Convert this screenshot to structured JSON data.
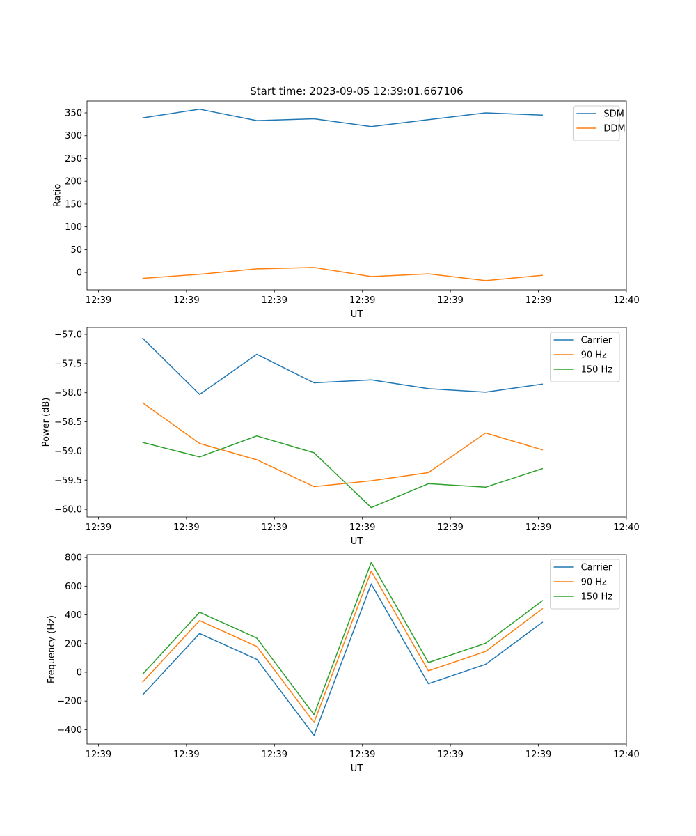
{
  "figure_title": "Start time: 2023-09-05 12:39:01.667106",
  "chart_data": [
    {
      "type": "line",
      "ylabel": "Ratio",
      "xlabel": "UT",
      "x": [
        0.5,
        1.15,
        1.8,
        2.45,
        3.1,
        3.75,
        4.4,
        5.05
      ],
      "xlim": [
        -0.13,
        6.0
      ],
      "ylim": [
        -38,
        376
      ],
      "xticks": [
        0,
        1,
        2,
        3,
        4,
        5,
        6
      ],
      "xtick_labels": [
        "12:39",
        "12:39",
        "12:39",
        "12:39",
        "12:39",
        "12:39",
        "12:40"
      ],
      "yticks": [
        0,
        50,
        100,
        150,
        200,
        250,
        300,
        350
      ],
      "ytick_labels": [
        "0",
        "50",
        "100",
        "150",
        "200",
        "250",
        "300",
        "350"
      ],
      "legend_position": "top-right",
      "series": [
        {
          "name": "SDM",
          "color": "#1f77b4",
          "values": [
            339,
            358,
            333,
            337,
            320,
            335,
            350,
            345
          ]
        },
        {
          "name": "DDM",
          "color": "#ff7f0e",
          "values": [
            -13,
            -4,
            8,
            11,
            -9,
            -3,
            -18,
            -6
          ]
        }
      ]
    },
    {
      "type": "line",
      "ylabel": "Power (dB)",
      "xlabel": "UT",
      "x": [
        0.5,
        1.15,
        1.8,
        2.45,
        3.1,
        3.75,
        4.4,
        5.05
      ],
      "xlim": [
        -0.13,
        6.0
      ],
      "ylim": [
        -60.13,
        -56.88
      ],
      "xticks": [
        0,
        1,
        2,
        3,
        4,
        5,
        6
      ],
      "xtick_labels": [
        "12:39",
        "12:39",
        "12:39",
        "12:39",
        "12:39",
        "12:39",
        "12:40"
      ],
      "yticks": [
        -60.0,
        -59.5,
        -59.0,
        -58.5,
        -58.0,
        -57.5,
        -57.0
      ],
      "ytick_labels": [
        "−60.0",
        "−59.5",
        "−59.0",
        "−58.5",
        "−58.0",
        "−57.5",
        "−57.0"
      ],
      "legend_position": "top-right",
      "series": [
        {
          "name": "Carrier",
          "color": "#1f77b4",
          "values": [
            -57.06,
            -58.03,
            -57.34,
            -57.83,
            -57.78,
            -57.93,
            -57.99,
            -57.85
          ]
        },
        {
          "name": "90 Hz",
          "color": "#ff7f0e",
          "values": [
            -58.17,
            -58.87,
            -59.15,
            -59.61,
            -59.51,
            -59.37,
            -58.69,
            -58.98
          ]
        },
        {
          "name": "150 Hz",
          "color": "#2ca02c",
          "values": [
            -58.85,
            -59.1,
            -58.74,
            -59.03,
            -59.97,
            -59.56,
            -59.62,
            -59.3
          ]
        }
      ]
    },
    {
      "type": "line",
      "ylabel": "Frequency (Hz)",
      "xlabel": "UT",
      "x": [
        0.5,
        1.15,
        1.8,
        2.45,
        3.1,
        3.75,
        4.4,
        5.05
      ],
      "xlim": [
        -0.13,
        6.0
      ],
      "ylim": [
        -500,
        820
      ],
      "xticks": [
        0,
        1,
        2,
        3,
        4,
        5,
        6
      ],
      "xtick_labels": [
        "12:39",
        "12:39",
        "12:39",
        "12:39",
        "12:39",
        "12:39",
        "12:40"
      ],
      "yticks": [
        -400,
        -200,
        0,
        200,
        400,
        600,
        800
      ],
      "ytick_labels": [
        "−400",
        "−200",
        "0",
        "200",
        "400",
        "600",
        "800"
      ],
      "legend_position": "top-right",
      "series": [
        {
          "name": "Carrier",
          "color": "#1f77b4",
          "values": [
            -160,
            270,
            90,
            -440,
            615,
            -80,
            55,
            350
          ]
        },
        {
          "name": "90 Hz",
          "color": "#ff7f0e",
          "values": [
            -70,
            360,
            180,
            -350,
            705,
            10,
            145,
            445
          ]
        },
        {
          "name": "150 Hz",
          "color": "#2ca02c",
          "values": [
            -15,
            418,
            238,
            -295,
            765,
            68,
            202,
            500
          ]
        }
      ]
    }
  ]
}
